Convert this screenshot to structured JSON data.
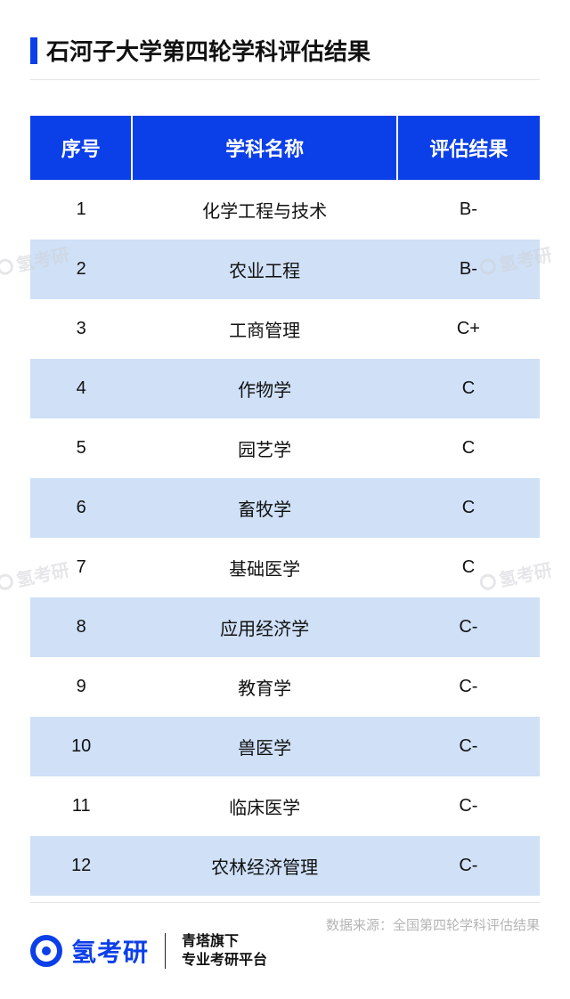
{
  "title": "石河子大学第四轮学科评估结果",
  "table": {
    "columns": [
      "序号",
      "学科名称",
      "评估结果"
    ],
    "col_widths": [
      "20%",
      "52%",
      "28%"
    ],
    "header_bg": "#0b3fe8",
    "header_color": "#ffffff",
    "row_bg": "#ffffff",
    "alt_row_bg": "#cfe0f7",
    "text_color": "#111111",
    "fontsize_header": 22,
    "fontsize_cell": 20,
    "rows": [
      [
        "1",
        "化学工程与技术",
        "B-"
      ],
      [
        "2",
        "农业工程",
        "B-"
      ],
      [
        "3",
        "工商管理",
        "C+"
      ],
      [
        "4",
        "作物学",
        "C"
      ],
      [
        "5",
        "园艺学",
        "C"
      ],
      [
        "6",
        "畜牧学",
        "C"
      ],
      [
        "7",
        "基础医学",
        "C"
      ],
      [
        "8",
        "应用经济学",
        "C-"
      ],
      [
        "9",
        "教育学",
        "C-"
      ],
      [
        "10",
        "兽医学",
        "C-"
      ],
      [
        "11",
        "临床医学",
        "C-"
      ],
      [
        "12",
        "农林经济管理",
        "C-"
      ]
    ]
  },
  "source": "数据来源：全国第四轮学科评估结果",
  "brand": {
    "name": "氢考研",
    "color": "#0b3fe8",
    "tagline1": "青塔旗下",
    "tagline2": "专业考研平台"
  },
  "watermark_text": "氢考研",
  "colors": {
    "accent": "#0b3fe8",
    "divider": "#e4e4e4",
    "source_text": "#b5b5b5",
    "watermark": "#d0d3d8"
  }
}
